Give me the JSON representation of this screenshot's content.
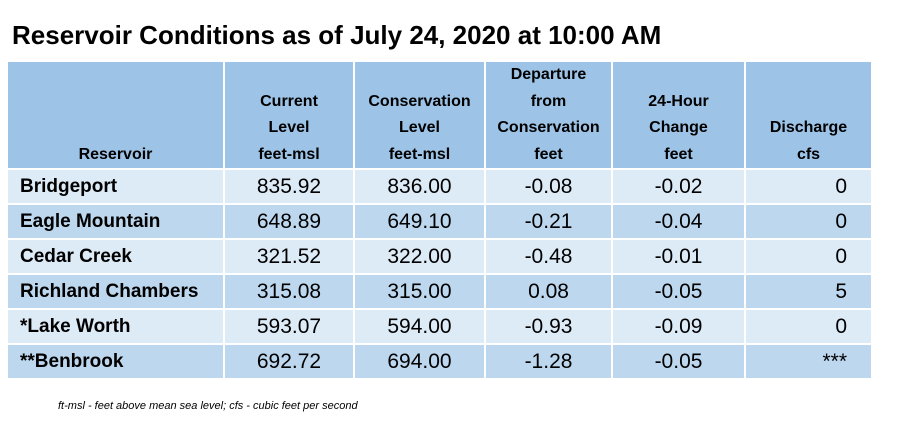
{
  "title": "Reservoir Conditions as of July 24, 2020 at 10:00 AM",
  "headers": [
    {
      "lines": [
        "Reservoir"
      ]
    },
    {
      "lines": [
        "Current",
        "Level",
        "feet-msl"
      ]
    },
    {
      "lines": [
        "Conservation",
        "Level",
        "feet-msl"
      ]
    },
    {
      "lines": [
        "Departure",
        "from",
        "Conservation",
        "feet"
      ]
    },
    {
      "lines": [
        "24-Hour",
        "Change",
        "feet"
      ]
    },
    {
      "lines": [
        "Discharge",
        "cfs"
      ]
    }
  ],
  "rows": [
    {
      "name": "Bridgeport",
      "current": "835.92",
      "conservation": "836.00",
      "departure": "-0.08",
      "change": "-0.02",
      "discharge": "0"
    },
    {
      "name": "Eagle Mountain",
      "current": "648.89",
      "conservation": "649.10",
      "departure": "-0.21",
      "change": "-0.04",
      "discharge": "0"
    },
    {
      "name": "Cedar Creek",
      "current": "321.52",
      "conservation": "322.00",
      "departure": "-0.48",
      "change": "-0.01",
      "discharge": "0"
    },
    {
      "name": "Richland Chambers",
      "current": "315.08",
      "conservation": "315.00",
      "departure": "0.08",
      "change": "-0.05",
      "discharge": "5"
    },
    {
      "name": "*Lake Worth",
      "current": "593.07",
      "conservation": "594.00",
      "departure": "-0.93",
      "change": "-0.09",
      "discharge": "0"
    },
    {
      "name": "**Benbrook",
      "current": "692.72",
      "conservation": "694.00",
      "departure": "-1.28",
      "change": "-0.05",
      "discharge": "***"
    }
  ],
  "footnote": "ft-msl - feet above mean sea level; cfs - cubic feet per second",
  "colors": {
    "header_bg": "#9dc3e6",
    "row_light": "#ddebf7",
    "row_dark": "#bdd7ee"
  }
}
